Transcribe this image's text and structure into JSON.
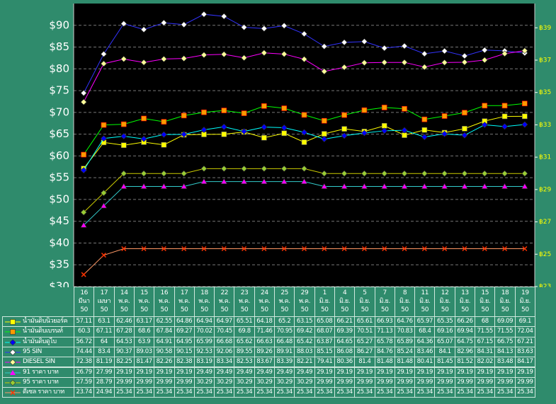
{
  "chart_data": {
    "type": "line",
    "categories": [
      "16 มีนา 50",
      "17 เมษา 50",
      "14 พ.ค. 50",
      "15 พ.ค. 50",
      "16 พ.ค. 50",
      "17 พ.ค. 50",
      "18 พ.ค. 50",
      "22 พ.ค. 50",
      "23 พ.ค. 50",
      "24 พ.ค. 50",
      "25 พ.ค. 50",
      "29 พ.ค. 50",
      "1 มิ.ย. 50",
      "4 มิ.ย. 50",
      "5 มิ.ย. 50",
      "7 มิ.ย. 50",
      "8 มิ.ย. 50",
      "11 มิ.ย. 50",
      "12 มิ.ย. 50",
      "13 มิ.ย. 50",
      "15 มิ.ย. 50",
      "18 มิ.ย. 50",
      "19 มิ.ย. 50"
    ],
    "ylim": [
      30,
      95
    ],
    "yticks": [
      {
        "value": 30,
        "label": "$30"
      },
      {
        "value": 35,
        "label": "$35"
      },
      {
        "value": 40,
        "label": "$40"
      },
      {
        "value": 45,
        "label": "$45"
      },
      {
        "value": 50,
        "label": "$50"
      },
      {
        "value": 55,
        "label": "$55"
      },
      {
        "value": 60,
        "label": "$60"
      },
      {
        "value": 65,
        "label": "$65"
      },
      {
        "value": 70,
        "label": "$70"
      },
      {
        "value": 75,
        "label": "$75"
      },
      {
        "value": 80,
        "label": "$80"
      },
      {
        "value": 85,
        "label": "$85"
      },
      {
        "value": 90,
        "label": "$90"
      }
    ],
    "y2lim": [
      23,
      40.5
    ],
    "y2ticks": [
      {
        "value": 23,
        "label": "฿23"
      },
      {
        "value": 25,
        "label": "฿25"
      },
      {
        "value": 27,
        "label": "฿27"
      },
      {
        "value": 29,
        "label": "฿29"
      },
      {
        "value": 31,
        "label": "฿31"
      },
      {
        "value": 33,
        "label": "฿33"
      },
      {
        "value": 35,
        "label": "฿35"
      },
      {
        "value": 37,
        "label": "฿37"
      },
      {
        "value": 39,
        "label": "฿39"
      }
    ],
    "grid": true,
    "series": [
      {
        "name": "น้ำมันดิบนิวยอร์ค",
        "color": "#ffff00",
        "marker": "square",
        "marker_color": "#ffff00",
        "values": [
          57.11,
          63.1,
          62.46,
          63.17,
          62.55,
          64.86,
          64.94,
          64.97,
          65.51,
          64.18,
          65.2,
          63.15,
          65.08,
          66.21,
          65.61,
          66.93,
          64.76,
          65.97,
          65.35,
          66.26,
          68,
          69.09,
          69.1
        ]
      },
      {
        "name": "น้ำมันดิบเบรนท์",
        "color": "#00ff00",
        "marker": "square",
        "marker_color": "#ff9900",
        "values": [
          60.3,
          67.11,
          67.28,
          68.6,
          67.84,
          69.27,
          70.02,
          70.45,
          69.8,
          71.46,
          70.95,
          69.42,
          68.07,
          69.39,
          70.51,
          71.13,
          70.83,
          68.4,
          69.16,
          69.94,
          71.55,
          71.55,
          72.04
        ]
      },
      {
        "name": "น้ำมันดิบดูไบ",
        "color": "#00ffff",
        "marker": "diamond",
        "marker_color": "#0000ff",
        "values": [
          56.72,
          64,
          64.53,
          63.9,
          64.91,
          64.95,
          65.99,
          66.68,
          65.62,
          66.63,
          66.48,
          65.42,
          63.87,
          64.65,
          65.27,
          65.78,
          65.89,
          64.36,
          65.07,
          64.75,
          67.15,
          66.75,
          67.21
        ]
      },
      {
        "name": "95 SIN",
        "color": "#3333ff",
        "marker": "diamond",
        "marker_color": "#ffffff",
        "values": [
          74.44,
          83.4,
          90.37,
          89.03,
          90.58,
          90.15,
          92.53,
          92.06,
          89.55,
          89.26,
          89.91,
          88.03,
          85.15,
          86.08,
          86.27,
          84.76,
          85.24,
          83.46,
          84.1,
          82.96,
          84.31,
          84.13,
          83.63
        ]
      },
      {
        "name": "DIESEL SIN",
        "color": "#ff00ff",
        "marker": "diamond",
        "marker_color": "#ffff99",
        "values": [
          72.38,
          81.19,
          82.25,
          81.47,
          82.26,
          82.38,
          83.19,
          83.34,
          82.53,
          83.67,
          83.39,
          82.21,
          79.41,
          80.36,
          81.4,
          81.48,
          81.48,
          80.41,
          81.45,
          81.52,
          82.02,
          83.48,
          84.17
        ]
      },
      {
        "name": "91 ราคา บาท",
        "color": "#33cccc",
        "marker": "triangle",
        "marker_color": "#ff00ff",
        "axis": "y2",
        "values": [
          26.79,
          27.99,
          29.19,
          29.19,
          29.19,
          29.19,
          29.49,
          29.49,
          29.49,
          29.49,
          29.49,
          29.49,
          29.19,
          29.19,
          29.19,
          29.19,
          29.19,
          29.19,
          29.19,
          29.19,
          29.19,
          29.19,
          29.19
        ]
      },
      {
        "name": "95 ราคา บาท",
        "color": "#cccc00",
        "marker": "diamond",
        "marker_color": "#99cc33",
        "axis": "y2",
        "values": [
          27.59,
          28.79,
          29.99,
          29.99,
          29.99,
          29.99,
          30.29,
          30.29,
          30.29,
          30.29,
          30.29,
          30.29,
          29.99,
          29.99,
          29.99,
          29.99,
          29.99,
          29.99,
          29.99,
          29.99,
          29.99,
          29.99,
          29.99
        ]
      },
      {
        "name": "ดีเซล ราคา บาท",
        "color": "#ff9966",
        "marker": "x",
        "marker_color": "#ff3300",
        "axis": "y2",
        "values": [
          23.74,
          24.94,
          25.34,
          25.34,
          25.34,
          25.34,
          25.34,
          25.34,
          25.34,
          25.34,
          25.34,
          25.34,
          25.34,
          25.34,
          25.34,
          25.34,
          25.34,
          25.34,
          25.34,
          25.34,
          25.34,
          25.34,
          25.34
        ]
      }
    ]
  }
}
